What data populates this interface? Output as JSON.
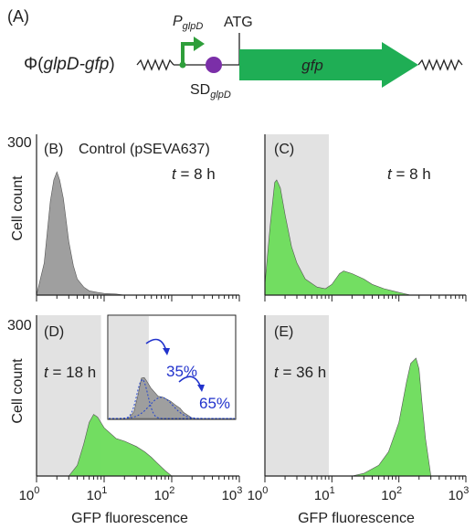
{
  "construct": {
    "panel_label": "(A)",
    "phi_prefix": "Φ(",
    "phi_gene": "glpD-gfp",
    "phi_suffix": ")",
    "promoter_base": "P",
    "promoter_sub": "glpD",
    "start_codon": "ATG",
    "sd_base": "SD",
    "sd_sub": "glpD",
    "gene": "gfp",
    "colors": {
      "promoter": "#2e9e3a",
      "rbs": "#7b2fa8",
      "gene": "#1fae55"
    }
  },
  "axes": {
    "y_max_label": "300",
    "y_label": "Cell count",
    "x_label": "GFP fluorescence",
    "x_ticks": [
      {
        "base": "10",
        "exp": "0"
      },
      {
        "base": "10",
        "exp": "1"
      },
      {
        "base": "10",
        "exp": "2"
      },
      {
        "base": "10",
        "exp": "3"
      }
    ]
  },
  "chart_data": [
    {
      "type": "area",
      "panel": "(B)",
      "annotation": "Control (pSEVA637)",
      "time_var": "t",
      "time_value": " = 8 h",
      "xscale": "log",
      "xlim": [
        1,
        1000
      ],
      "ylim": [
        0,
        300
      ],
      "gray_region": null,
      "series": [
        {
          "color": "#9a9a9a",
          "x": [
            1,
            1.3,
            1.6,
            1.8,
            2.0,
            2.2,
            2.5,
            3,
            3.5,
            4,
            5,
            6,
            8,
            10,
            15,
            20,
            1000
          ],
          "y": [
            0,
            60,
            175,
            215,
            230,
            215,
            180,
            100,
            55,
            30,
            15,
            8,
            5,
            3,
            2,
            0,
            0
          ]
        }
      ]
    },
    {
      "type": "area",
      "panel": "(C)",
      "annotation": "",
      "time_var": "t",
      "time_value": " = 8 h",
      "xscale": "log",
      "xlim": [
        1,
        1000
      ],
      "ylim": [
        0,
        300
      ],
      "gray_region": [
        1,
        9
      ],
      "series": [
        {
          "color": "#6cdc5a",
          "x": [
            1,
            1.2,
            1.4,
            1.5,
            1.7,
            2.0,
            2.5,
            3,
            4,
            6,
            8,
            10,
            13,
            15,
            20,
            30,
            40,
            60,
            80,
            100,
            150,
            1000
          ],
          "y": [
            20,
            130,
            210,
            215,
            200,
            150,
            90,
            60,
            30,
            15,
            12,
            20,
            40,
            45,
            40,
            30,
            20,
            12,
            8,
            5,
            0,
            0
          ]
        }
      ]
    },
    {
      "type": "area",
      "panel": "(D)",
      "annotation": "",
      "time_var": "t",
      "time_value": " = 18 h",
      "xscale": "log",
      "xlim": [
        1,
        1000
      ],
      "ylim": [
        0,
        300
      ],
      "gray_region": [
        1,
        9
      ],
      "series": [
        {
          "color": "#6cdc5a",
          "x": [
            1,
            3,
            4,
            5,
            6,
            7,
            8,
            10,
            15,
            20,
            30,
            40,
            50,
            60,
            80,
            100,
            1000
          ],
          "y": [
            0,
            0,
            20,
            60,
            100,
            115,
            110,
            90,
            70,
            65,
            55,
            45,
            35,
            25,
            10,
            0,
            0
          ]
        }
      ],
      "inset": {
        "gray_region": [
          1,
          9
        ],
        "peak1_pct": "35%",
        "peak2_pct": "65%",
        "series": [
          {
            "color": "#9a9a9a",
            "x": [
              1,
              3,
              4,
              5,
              6,
              7,
              8,
              10,
              15,
              20,
              30,
              40,
              50,
              60,
              80,
              100,
              1000
            ],
            "y": [
              0,
              0,
              20,
              70,
              118,
              120,
              110,
              90,
              65,
              62,
              50,
              38,
              30,
              18,
              8,
              0,
              0
            ]
          }
        ]
      }
    },
    {
      "type": "area",
      "panel": "(E)",
      "annotation": "",
      "time_var": "t",
      "time_value": " = 36 h",
      "xscale": "log",
      "xlim": [
        1,
        1000
      ],
      "ylim": [
        0,
        300
      ],
      "gray_region": [
        1,
        9
      ],
      "series": [
        {
          "color": "#6cdc5a",
          "x": [
            1,
            20,
            30,
            50,
            70,
            100,
            130,
            150,
            180,
            200,
            220,
            250,
            300,
            1000
          ],
          "y": [
            0,
            0,
            5,
            20,
            45,
            100,
            175,
            210,
            220,
            200,
            140,
            70,
            0,
            0
          ]
        }
      ]
    }
  ]
}
